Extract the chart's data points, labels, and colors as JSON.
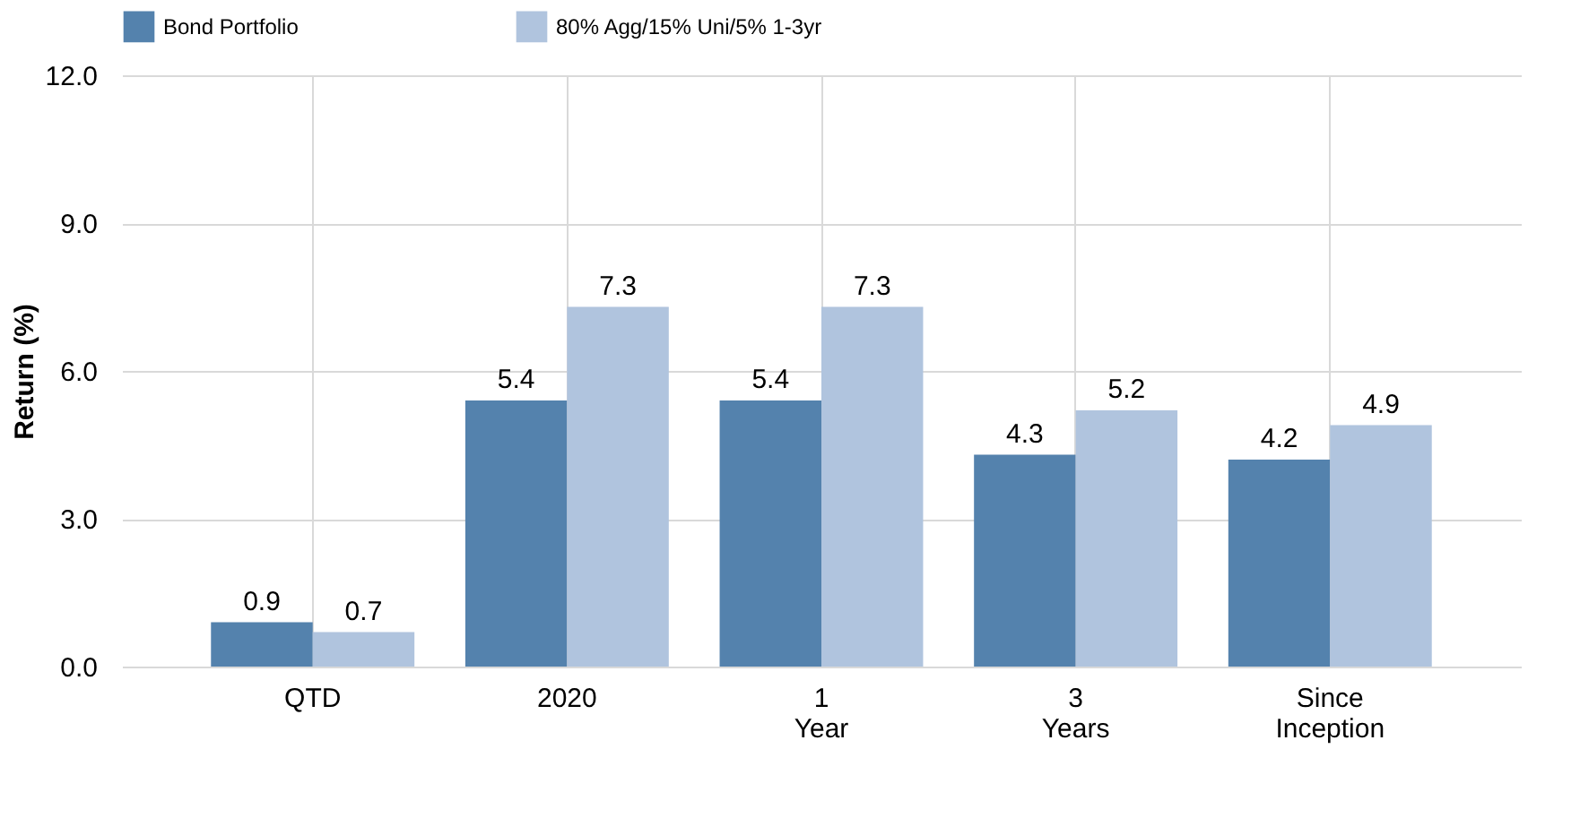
{
  "chart_data": {
    "type": "bar",
    "ylabel": "Return (%)",
    "categories": [
      "QTD",
      "2020",
      "1 Year",
      "3 Years",
      "Since Inception"
    ],
    "series": [
      {
        "name": "Bond Portfolio",
        "color": "#5482ad",
        "values": [
          0.9,
          5.4,
          5.4,
          4.3,
          4.2
        ]
      },
      {
        "name": "80% Agg/15% Uni/5% 1-3yr",
        "color": "#b0c4de",
        "values": [
          0.7,
          7.3,
          7.3,
          5.2,
          4.9
        ]
      }
    ],
    "ylim": [
      0,
      12
    ],
    "yticks": [
      {
        "value": 0,
        "label": "0.0"
      },
      {
        "value": 3,
        "label": "3.0"
      },
      {
        "value": 6,
        "label": "6.0"
      },
      {
        "value": 9,
        "label": "9.0"
      },
      {
        "value": 12,
        "label": "12.0"
      }
    ],
    "grid": true,
    "legend": "top",
    "data_labels": true
  }
}
